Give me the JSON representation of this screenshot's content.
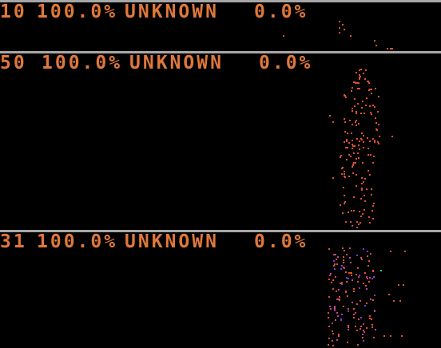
{
  "colors": {
    "background": "#000000",
    "divider": "#a7a7a7",
    "header_text": "#e0783a",
    "dot_primary": "#e05030",
    "dot_secondary": "#c040a0",
    "dot_tertiary": "#7040e0",
    "dot_accent": "#40c0a0"
  },
  "panels": [
    {
      "id": "10",
      "percent": "100.0%",
      "label": "UNKNOWN",
      "value": "0.0%"
    },
    {
      "id": "50",
      "percent": "100.0%",
      "label": "UNKNOWN",
      "value": "0.0%"
    },
    {
      "id": "31",
      "percent": "100.0%",
      "label": "UNKNOWN",
      "value": "0.0%"
    }
  ]
}
